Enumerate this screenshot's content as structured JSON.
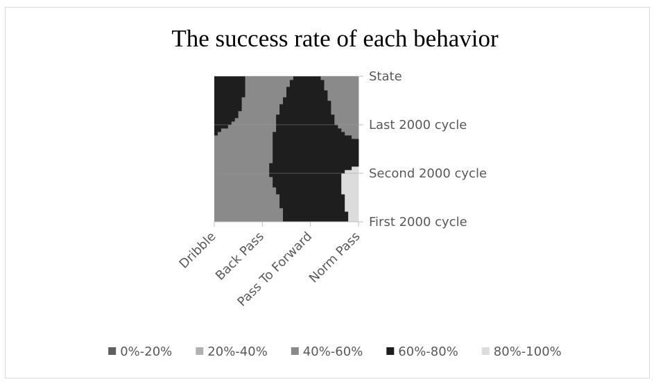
{
  "chart_data": {
    "type": "surface-contour",
    "title": "The success rate of each behavior",
    "categories": [
      "Dribble",
      "Back Pass",
      "Pass To Forward",
      "Norm Pass"
    ],
    "series": [
      {
        "name": "First 2000 cycle",
        "values": [
          45,
          50,
          72,
          82
        ]
      },
      {
        "name": "Second 2000 cycle",
        "values": [
          52,
          58,
          72,
          85
        ]
      },
      {
        "name": "Last 2000 cycle",
        "values": [
          62,
          55,
          74,
          48
        ]
      },
      {
        "name": "State",
        "values": [
          80,
          50,
          66,
          40
        ]
      }
    ],
    "legend": {
      "position": "bottom",
      "entries": [
        {
          "label": "0%-20%",
          "color": "#5f5f5f"
        },
        {
          "label": "20%-40%",
          "color": "#b1b1b1"
        },
        {
          "label": "40%-60%",
          "color": "#8a8a8a"
        },
        {
          "label": "60%-80%",
          "color": "#1e1e1e"
        },
        {
          "label": "80%-100%",
          "color": "#dcdcdc"
        }
      ]
    },
    "zlim": [
      0,
      100
    ]
  }
}
